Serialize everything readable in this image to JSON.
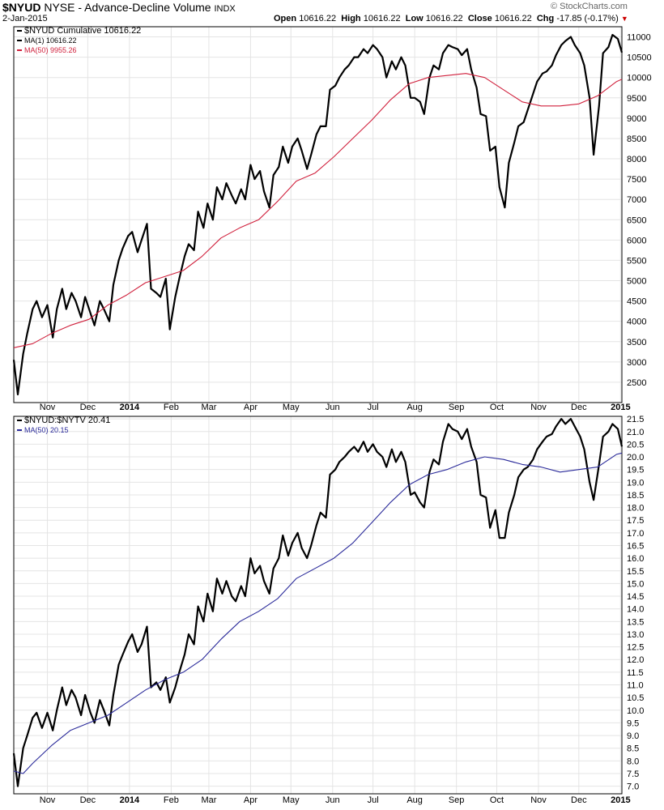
{
  "header": {
    "symbol": "$NYUD",
    "name": "NYSE - Advance-Decline Volume",
    "exchange": "INDX",
    "date": "2-Jan-2015",
    "ohlc": {
      "open_label": "Open",
      "open": "10616.22",
      "high_label": "High",
      "high": "10616.22",
      "low_label": "Low",
      "low": "10616.22",
      "close_label": "Close",
      "close": "10616.22",
      "chg_label": "Chg",
      "chg": "-17.85 (-0.17%)"
    },
    "brand": "© StockCharts.com"
  },
  "colors": {
    "price": "#000000",
    "ma_top": "#d0203c",
    "ma_bottom": "#2a2a9a",
    "grid": "#e4e4e4",
    "down": "#cc0000"
  },
  "chart_data": [
    {
      "type": "line",
      "legend": [
        {
          "text": "$NYUD Cumulative 10616.22",
          "color": "#000000"
        },
        {
          "text": "MA(1) 10616.22",
          "color": "#000000"
        },
        {
          "text": "MA(50) 9955.26",
          "color": "#d0203c"
        }
      ],
      "x_ticks": [
        "Nov",
        "Dec",
        "2014",
        "Feb",
        "Mar",
        "Apr",
        "May",
        "Jun",
        "Jul",
        "Aug",
        "Sep",
        "Oct",
        "Nov",
        "Dec",
        "2015"
      ],
      "x_tick_dates": [
        "2013-11-01",
        "2013-12-01",
        "2014-01-01",
        "2014-02-01",
        "2014-03-01",
        "2014-04-01",
        "2014-05-01",
        "2014-06-01",
        "2014-07-01",
        "2014-08-01",
        "2014-09-01",
        "2014-10-01",
        "2014-11-01",
        "2014-12-01",
        "2015-01-01"
      ],
      "x_range": [
        "2013-10-07",
        "2015-01-02"
      ],
      "ylim": [
        2000,
        11250
      ],
      "y_ticks": [
        2500,
        3000,
        3500,
        4000,
        4500,
        5000,
        5500,
        6000,
        6500,
        7000,
        7500,
        8000,
        8500,
        9000,
        9500,
        10000,
        10500,
        11000
      ],
      "series": [
        {
          "name": "$NYUD Cumulative",
          "color": "#000000",
          "x": [
            "2013-10-07",
            "2013-10-10",
            "2013-10-14",
            "2013-10-17",
            "2013-10-21",
            "2013-10-24",
            "2013-10-28",
            "2013-11-01",
            "2013-11-05",
            "2013-11-08",
            "2013-11-12",
            "2013-11-15",
            "2013-11-19",
            "2013-11-22",
            "2013-11-26",
            "2013-11-29",
            "2013-12-03",
            "2013-12-06",
            "2013-12-10",
            "2013-12-13",
            "2013-12-17",
            "2013-12-20",
            "2013-12-24",
            "2013-12-27",
            "2013-12-31",
            "2014-01-03",
            "2014-01-07",
            "2014-01-10",
            "2014-01-14",
            "2014-01-17",
            "2014-01-21",
            "2014-01-24",
            "2014-01-28",
            "2014-01-31",
            "2014-02-04",
            "2014-02-07",
            "2014-02-11",
            "2014-02-14",
            "2014-02-18",
            "2014-02-21",
            "2014-02-25",
            "2014-02-28",
            "2014-03-04",
            "2014-03-07",
            "2014-03-11",
            "2014-03-14",
            "2014-03-18",
            "2014-03-21",
            "2014-03-25",
            "2014-03-28",
            "2014-04-01",
            "2014-04-04",
            "2014-04-08",
            "2014-04-11",
            "2014-04-15",
            "2014-04-18",
            "2014-04-22",
            "2014-04-25",
            "2014-04-29",
            "2014-05-02",
            "2014-05-06",
            "2014-05-09",
            "2014-05-13",
            "2014-05-16",
            "2014-05-20",
            "2014-05-23",
            "2014-05-27",
            "2014-05-30",
            "2014-06-03",
            "2014-06-06",
            "2014-06-10",
            "2014-06-13",
            "2014-06-17",
            "2014-06-20",
            "2014-06-24",
            "2014-06-27",
            "2014-07-01",
            "2014-07-04",
            "2014-07-08",
            "2014-07-11",
            "2014-07-15",
            "2014-07-18",
            "2014-07-22",
            "2014-07-25",
            "2014-07-29",
            "2014-08-01",
            "2014-08-05",
            "2014-08-08",
            "2014-08-12",
            "2014-08-15",
            "2014-08-19",
            "2014-08-22",
            "2014-08-26",
            "2014-08-29",
            "2014-09-02",
            "2014-09-05",
            "2014-09-09",
            "2014-09-12",
            "2014-09-16",
            "2014-09-19",
            "2014-09-23",
            "2014-09-26",
            "2014-09-30",
            "2014-10-03",
            "2014-10-07",
            "2014-10-10",
            "2014-10-14",
            "2014-10-17",
            "2014-10-21",
            "2014-10-24",
            "2014-10-28",
            "2014-10-31",
            "2014-11-04",
            "2014-11-07",
            "2014-11-11",
            "2014-11-14",
            "2014-11-18",
            "2014-11-21",
            "2014-11-25",
            "2014-11-28",
            "2014-12-02",
            "2014-12-05",
            "2014-12-09",
            "2014-12-12",
            "2014-12-16",
            "2014-12-19",
            "2014-12-23",
            "2014-12-26",
            "2014-12-30",
            "2015-01-02"
          ],
          "values": [
            3050,
            2200,
            3200,
            3700,
            4300,
            4500,
            4100,
            4400,
            3600,
            4300,
            4800,
            4300,
            4700,
            4500,
            4100,
            4600,
            4200,
            3900,
            4500,
            4300,
            4000,
            4900,
            5500,
            5800,
            6100,
            6200,
            5700,
            6000,
            6400,
            4800,
            4700,
            4600,
            5050,
            3800,
            4600,
            5050,
            5600,
            5900,
            5750,
            6700,
            6300,
            6900,
            6500,
            7300,
            7000,
            7400,
            7100,
            6900,
            7250,
            7000,
            7850,
            7500,
            7700,
            7200,
            6800,
            7600,
            7800,
            8300,
            7900,
            8300,
            8500,
            8200,
            7750,
            8100,
            8600,
            8800,
            8800,
            9700,
            9800,
            10000,
            10200,
            10300,
            10500,
            10500,
            10700,
            10600,
            10800,
            10700,
            10500,
            10000,
            10400,
            10200,
            10500,
            10300,
            9500,
            9500,
            9400,
            9100,
            10000,
            10300,
            10200,
            10600,
            10800,
            10750,
            10700,
            10550,
            10700,
            10200,
            9750,
            9100,
            9050,
            8200,
            8300,
            7300,
            6800,
            7900,
            8400,
            8800,
            8900,
            9200,
            9600,
            9900,
            10100,
            10150,
            10300,
            10550,
            10800,
            10900,
            11000,
            10800,
            10600,
            10300,
            9500,
            8100,
            9300,
            10600,
            10750,
            11050,
            10950,
            10616.22
          ]
        },
        {
          "name": "MA(50)",
          "color": "#d0203c",
          "x": [
            "2013-10-07",
            "2013-10-21",
            "2013-11-04",
            "2013-11-18",
            "2013-12-02",
            "2013-12-16",
            "2013-12-30",
            "2014-01-13",
            "2014-01-27",
            "2014-02-10",
            "2014-02-24",
            "2014-03-10",
            "2014-03-24",
            "2014-04-07",
            "2014-04-21",
            "2014-05-05",
            "2014-05-19",
            "2014-06-02",
            "2014-06-16",
            "2014-06-30",
            "2014-07-14",
            "2014-07-28",
            "2014-08-11",
            "2014-08-25",
            "2014-09-08",
            "2014-09-22",
            "2014-10-06",
            "2014-10-20",
            "2014-11-03",
            "2014-11-17",
            "2014-12-01",
            "2014-12-15",
            "2014-12-29",
            "2015-01-02"
          ],
          "values": [
            3350,
            3450,
            3700,
            3900,
            4050,
            4400,
            4650,
            4950,
            5100,
            5250,
            5600,
            6050,
            6300,
            6500,
            6950,
            7450,
            7650,
            8050,
            8500,
            8950,
            9450,
            9850,
            10000,
            10050,
            10100,
            10000,
            9700,
            9400,
            9300,
            9300,
            9350,
            9550,
            9900,
            9955.26
          ]
        }
      ]
    },
    {
      "type": "line",
      "legend": [
        {
          "text": "$NYUD:$NYTV 20.41",
          "color": "#000000"
        },
        {
          "text": "MA(50) 20.15",
          "color": "#2a2a9a"
        }
      ],
      "x_ticks": [
        "Nov",
        "Dec",
        "2014",
        "Feb",
        "Mar",
        "Apr",
        "May",
        "Jun",
        "Jul",
        "Aug",
        "Sep",
        "Oct",
        "Nov",
        "Dec",
        "2015"
      ],
      "ylim": [
        6.7,
        21.6
      ],
      "y_ticks": [
        7.0,
        7.5,
        8.0,
        8.5,
        9.0,
        9.5,
        10.0,
        10.5,
        11.0,
        11.5,
        12.0,
        12.5,
        13.0,
        13.5,
        14.0,
        14.5,
        15.0,
        15.5,
        16.0,
        16.5,
        17.0,
        17.5,
        18.0,
        18.5,
        19.0,
        19.5,
        20.0,
        20.5,
        21.0,
        21.5
      ],
      "y_tick_labels": [
        "7.0",
        "7.5",
        "8.0",
        "8.5",
        "9.0",
        "9.5",
        "10.0",
        "10.5",
        "11.0",
        "11.5",
        "12.0",
        "12.5",
        "13.0",
        "13.5",
        "14.0",
        "14.5",
        "15.0",
        "15.5",
        "16.0",
        "16.5",
        "17.0",
        "17.5",
        "18.0",
        "18.5",
        "19.0",
        "19.5",
        "20.0",
        "20.5",
        "21.0",
        "21.5"
      ],
      "series": [
        {
          "name": "$NYUD:$NYTV",
          "color": "#000000",
          "x": [
            "2013-10-07",
            "2013-10-10",
            "2013-10-14",
            "2013-10-17",
            "2013-10-21",
            "2013-10-24",
            "2013-10-28",
            "2013-11-01",
            "2013-11-05",
            "2013-11-08",
            "2013-11-12",
            "2013-11-15",
            "2013-11-19",
            "2013-11-22",
            "2013-11-26",
            "2013-11-29",
            "2013-12-03",
            "2013-12-06",
            "2013-12-10",
            "2013-12-13",
            "2013-12-17",
            "2013-12-20",
            "2013-12-24",
            "2013-12-27",
            "2013-12-31",
            "2014-01-03",
            "2014-01-07",
            "2014-01-10",
            "2014-01-14",
            "2014-01-17",
            "2014-01-21",
            "2014-01-24",
            "2014-01-28",
            "2014-01-31",
            "2014-02-04",
            "2014-02-07",
            "2014-02-11",
            "2014-02-14",
            "2014-02-18",
            "2014-02-21",
            "2014-02-25",
            "2014-02-28",
            "2014-03-04",
            "2014-03-07",
            "2014-03-11",
            "2014-03-14",
            "2014-03-18",
            "2014-03-21",
            "2014-03-25",
            "2014-03-28",
            "2014-04-01",
            "2014-04-04",
            "2014-04-08",
            "2014-04-11",
            "2014-04-15",
            "2014-04-18",
            "2014-04-22",
            "2014-04-25",
            "2014-04-29",
            "2014-05-02",
            "2014-05-06",
            "2014-05-09",
            "2014-05-13",
            "2014-05-16",
            "2014-05-20",
            "2014-05-23",
            "2014-05-27",
            "2014-05-30",
            "2014-06-03",
            "2014-06-06",
            "2014-06-10",
            "2014-06-13",
            "2014-06-17",
            "2014-06-20",
            "2014-06-24",
            "2014-06-27",
            "2014-07-01",
            "2014-07-04",
            "2014-07-08",
            "2014-07-11",
            "2014-07-15",
            "2014-07-18",
            "2014-07-22",
            "2014-07-25",
            "2014-07-29",
            "2014-08-01",
            "2014-08-05",
            "2014-08-08",
            "2014-08-12",
            "2014-08-15",
            "2014-08-19",
            "2014-08-22",
            "2014-08-26",
            "2014-08-29",
            "2014-09-02",
            "2014-09-05",
            "2014-09-09",
            "2014-09-12",
            "2014-09-16",
            "2014-09-19",
            "2014-09-23",
            "2014-09-26",
            "2014-09-30",
            "2014-10-03",
            "2014-10-07",
            "2014-10-10",
            "2014-10-14",
            "2014-10-17",
            "2014-10-21",
            "2014-10-24",
            "2014-10-28",
            "2014-10-31",
            "2014-11-04",
            "2014-11-07",
            "2014-11-11",
            "2014-11-14",
            "2014-11-18",
            "2014-11-21",
            "2014-11-25",
            "2014-11-28",
            "2014-12-02",
            "2014-12-05",
            "2014-12-09",
            "2014-12-12",
            "2014-12-16",
            "2014-12-19",
            "2014-12-23",
            "2014-12-26",
            "2014-12-30",
            "2015-01-02"
          ],
          "values": [
            8.3,
            7.0,
            8.5,
            9.0,
            9.7,
            9.9,
            9.3,
            9.9,
            9.2,
            10.0,
            10.9,
            10.2,
            10.8,
            10.5,
            9.8,
            10.6,
            9.9,
            9.5,
            10.4,
            10.0,
            9.4,
            10.6,
            11.8,
            12.2,
            12.7,
            13.0,
            12.3,
            12.6,
            13.3,
            10.9,
            11.1,
            10.8,
            11.3,
            10.3,
            10.9,
            11.5,
            12.2,
            13.0,
            12.6,
            14.1,
            13.5,
            14.6,
            13.9,
            15.2,
            14.6,
            15.1,
            14.5,
            14.3,
            14.9,
            14.5,
            16.0,
            15.4,
            15.7,
            15.1,
            14.6,
            15.6,
            16.0,
            16.9,
            16.1,
            16.6,
            17.0,
            16.4,
            16.0,
            16.5,
            17.3,
            17.8,
            17.6,
            19.3,
            19.5,
            19.8,
            20.0,
            20.2,
            20.4,
            20.2,
            20.6,
            20.2,
            20.5,
            20.2,
            20.0,
            19.6,
            20.3,
            19.8,
            20.2,
            19.8,
            18.5,
            18.6,
            18.2,
            18.0,
            19.4,
            19.9,
            19.7,
            20.6,
            21.3,
            21.1,
            21.0,
            20.7,
            21.1,
            20.4,
            19.8,
            18.5,
            18.4,
            17.2,
            17.9,
            16.8,
            16.8,
            17.8,
            18.5,
            19.2,
            19.5,
            19.6,
            19.9,
            20.3,
            20.6,
            20.8,
            20.9,
            21.2,
            21.5,
            21.3,
            21.5,
            21.2,
            20.8,
            20.3,
            19.0,
            18.3,
            19.7,
            20.8,
            21.0,
            21.3,
            21.1,
            20.41
          ]
        },
        {
          "name": "MA(50)",
          "color": "#2a2a9a",
          "x": [
            "2013-10-07",
            "2013-10-14",
            "2013-10-21",
            "2013-11-04",
            "2013-11-18",
            "2013-12-02",
            "2013-12-16",
            "2013-12-30",
            "2014-01-13",
            "2014-01-27",
            "2014-02-10",
            "2014-02-24",
            "2014-03-10",
            "2014-03-24",
            "2014-04-07",
            "2014-04-21",
            "2014-05-05",
            "2014-05-19",
            "2014-06-02",
            "2014-06-16",
            "2014-06-30",
            "2014-07-14",
            "2014-07-28",
            "2014-08-11",
            "2014-08-25",
            "2014-09-08",
            "2014-09-22",
            "2014-10-06",
            "2014-10-20",
            "2014-11-03",
            "2014-11-17",
            "2014-12-01",
            "2014-12-15",
            "2014-12-29",
            "2015-01-02"
          ],
          "values": [
            7.6,
            7.5,
            7.9,
            8.6,
            9.2,
            9.5,
            9.8,
            10.3,
            10.8,
            11.2,
            11.5,
            12.0,
            12.8,
            13.5,
            13.9,
            14.4,
            15.2,
            15.6,
            16.0,
            16.6,
            17.4,
            18.2,
            18.9,
            19.3,
            19.5,
            19.8,
            20.0,
            19.9,
            19.7,
            19.6,
            19.4,
            19.5,
            19.6,
            20.1,
            20.15
          ]
        }
      ]
    }
  ]
}
